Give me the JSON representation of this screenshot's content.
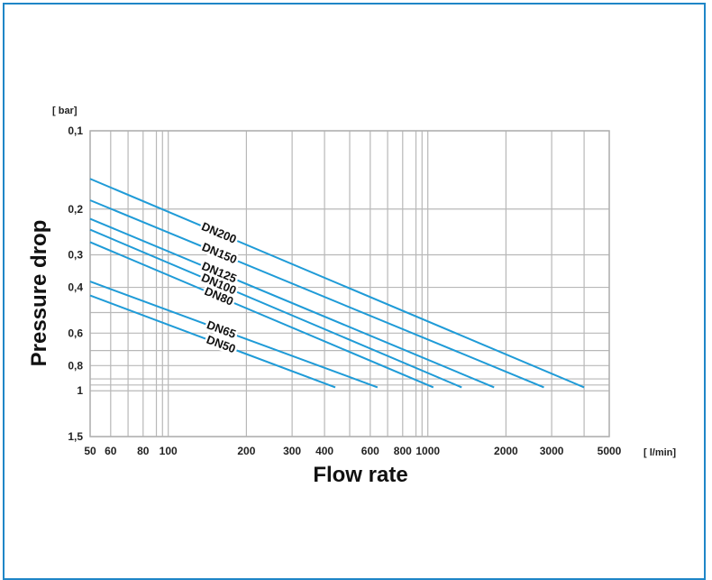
{
  "chart_data": {
    "type": "line",
    "title": "",
    "xlabel": "Flow rate",
    "ylabel": "Pressure drop",
    "x_unit": "[ l/min]",
    "y_unit": "[ bar]",
    "x_scale": "log",
    "y_scale": "log",
    "y_inverted": true,
    "xlim": [
      50,
      5000
    ],
    "ylim": [
      0.1,
      1.5
    ],
    "grid": true,
    "x_ticks": [
      {
        "value": 50,
        "label": "50"
      },
      {
        "value": 60,
        "label": "60"
      },
      {
        "value": 80,
        "label": "80"
      },
      {
        "value": 100,
        "label": "100"
      },
      {
        "value": 200,
        "label": "200"
      },
      {
        "value": 300,
        "label": "300"
      },
      {
        "value": 400,
        "label": "400"
      },
      {
        "value": 600,
        "label": "600"
      },
      {
        "value": 800,
        "label": "800"
      },
      {
        "value": 1000,
        "label": "1000"
      },
      {
        "value": 2000,
        "label": "2000"
      },
      {
        "value": 3000,
        "label": "3000"
      },
      {
        "value": 5000,
        "label": "5000"
      }
    ],
    "x_grid": [
      50,
      60,
      70,
      80,
      90,
      95,
      100,
      200,
      300,
      400,
      500,
      600,
      700,
      800,
      900,
      950,
      1000,
      2000,
      3000,
      4000,
      5000
    ],
    "y_ticks": [
      {
        "value": 0.1,
        "label": "0,1"
      },
      {
        "value": 0.2,
        "label": "0,2"
      },
      {
        "value": 0.3,
        "label": "0,3"
      },
      {
        "value": 0.4,
        "label": "0,4"
      },
      {
        "value": 0.6,
        "label": "0,6"
      },
      {
        "value": 0.8,
        "label": "0,8"
      },
      {
        "value": 1,
        "label": "1"
      },
      {
        "value": 1.5,
        "label": "1,5"
      }
    ],
    "y_grid": [
      0.1,
      0.2,
      0.3,
      0.4,
      0.5,
      0.6,
      0.7,
      0.8,
      0.9,
      0.95,
      1,
      1.5
    ],
    "series_color": "#1f9bd7",
    "series": [
      {
        "name": "DN200",
        "x": [
          50,
          4000
        ],
        "y": [
          0.153,
          0.97
        ]
      },
      {
        "name": "DN150",
        "x": [
          50,
          2800
        ],
        "y": [
          0.185,
          0.97
        ]
      },
      {
        "name": "DN125",
        "x": [
          50,
          1800
        ],
        "y": [
          0.218,
          0.97
        ]
      },
      {
        "name": "DN100",
        "x": [
          50,
          1350
        ],
        "y": [
          0.24,
          0.97
        ]
      },
      {
        "name": "DN80",
        "x": [
          50,
          1050
        ],
        "y": [
          0.268,
          0.97
        ]
      },
      {
        "name": "DN65",
        "x": [
          50,
          640
        ],
        "y": [
          0.38,
          0.97
        ]
      },
      {
        "name": "DN50",
        "x": [
          50,
          440
        ],
        "y": [
          0.43,
          0.97
        ]
      }
    ]
  }
}
